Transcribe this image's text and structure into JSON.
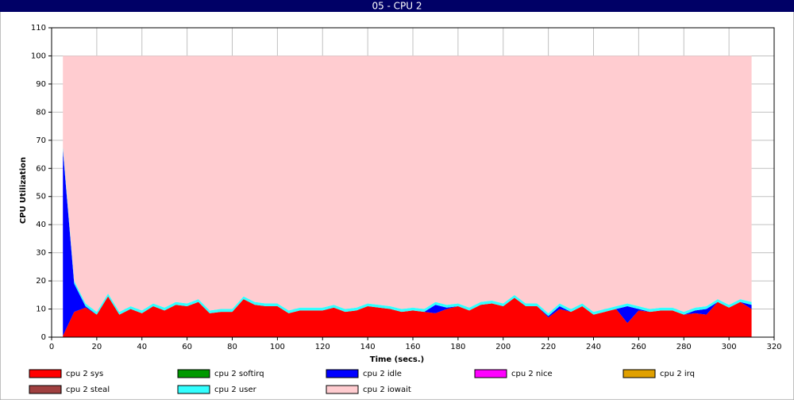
{
  "chart_data": {
    "type": "stacked-area",
    "title": "05 - CPU 2",
    "x_label": "Time (secs.)",
    "y_label": "CPU Utilization",
    "x": [
      5,
      10,
      15,
      20,
      25,
      30,
      35,
      40,
      45,
      50,
      55,
      60,
      65,
      70,
      75,
      80,
      85,
      90,
      95,
      100,
      105,
      110,
      115,
      120,
      125,
      130,
      135,
      140,
      145,
      150,
      155,
      160,
      165,
      170,
      175,
      180,
      185,
      190,
      195,
      200,
      205,
      210,
      215,
      220,
      225,
      230,
      235,
      240,
      245,
      250,
      255,
      260,
      265,
      270,
      275,
      280,
      285,
      290,
      295,
      300,
      305,
      310
    ],
    "xlim": [
      0,
      320
    ],
    "xticks": [
      0,
      20,
      40,
      60,
      80,
      100,
      120,
      140,
      160,
      180,
      200,
      220,
      240,
      260,
      280,
      300,
      320
    ],
    "ylim": [
      0,
      110
    ],
    "yticks": [
      0,
      10,
      20,
      30,
      40,
      50,
      60,
      70,
      80,
      90,
      100,
      110
    ],
    "grid": true,
    "series": [
      {
        "name": "cpu 2 sys",
        "color": "#ff0000",
        "values": [
          0.5,
          9,
          10.5,
          8,
          14.5,
          8,
          10,
          8.5,
          11,
          9.5,
          11.5,
          11,
          12.5,
          8.5,
          9,
          9,
          13.5,
          11.5,
          11,
          11,
          8.5,
          9.5,
          9.5,
          9.5,
          10.5,
          9,
          9.5,
          11,
          10.5,
          10,
          9,
          9.5,
          9,
          8.5,
          10,
          11,
          9.5,
          11.5,
          12,
          11,
          14,
          11,
          11,
          7,
          10,
          9,
          11,
          8,
          9,
          10,
          5,
          9.5,
          9,
          9.5,
          9.5,
          8,
          8.5,
          8,
          12.5,
          10.5,
          12.5,
          10
        ]
      },
      {
        "name": "cpu 2 softirq",
        "color": "#009900",
        "values": [
          0,
          0,
          0,
          0,
          0,
          0,
          0,
          0,
          0,
          0,
          0,
          0,
          0,
          0,
          0,
          0,
          0,
          0,
          0,
          0,
          0,
          0,
          0,
          0,
          0,
          0,
          0,
          0,
          0,
          0,
          0,
          0,
          0,
          0,
          0,
          0,
          0,
          0,
          0,
          0,
          0,
          0,
          0,
          0,
          0,
          0,
          0,
          0,
          0,
          0,
          0,
          0,
          0,
          0,
          0,
          0,
          0,
          0,
          0,
          0,
          0,
          0
        ]
      },
      {
        "name": "cpu 2 idle",
        "color": "#0000ff",
        "values": [
          66,
          10,
          0.5,
          0,
          0,
          0,
          0,
          0,
          0,
          0,
          0,
          0,
          0,
          0,
          0,
          0,
          0,
          0,
          0,
          0,
          0,
          0,
          0,
          0,
          0,
          0,
          0,
          0,
          0,
          0,
          0,
          0,
          0,
          3,
          0.5,
          0,
          0,
          0,
          0,
          0,
          0,
          0,
          0,
          0.5,
          1,
          0,
          0,
          0,
          0,
          0,
          6,
          0.5,
          0,
          0,
          0,
          0,
          1,
          2,
          0,
          0,
          0,
          1.5
        ]
      },
      {
        "name": "cpu 2 nice",
        "color": "#ff00ff",
        "values": [
          0,
          0,
          0,
          0,
          0,
          0,
          0,
          0,
          0,
          0,
          0,
          0,
          0,
          0,
          0,
          0,
          0,
          0,
          0,
          0,
          0,
          0,
          0,
          0,
          0,
          0,
          0,
          0,
          0,
          0,
          0,
          0,
          0,
          0,
          0,
          0,
          0,
          0,
          0,
          0,
          0,
          0,
          0,
          0,
          0,
          0,
          0,
          0,
          0,
          0,
          0,
          0,
          0,
          0,
          0,
          0,
          0,
          0,
          0,
          0,
          0,
          0
        ]
      },
      {
        "name": "cpu 2 irq",
        "color": "#e0a000",
        "values": [
          0,
          0,
          0,
          0,
          0,
          0,
          0,
          0,
          0,
          0,
          0,
          0,
          0,
          0,
          0,
          0,
          0,
          0,
          0,
          0,
          0,
          0,
          0,
          0,
          0,
          0,
          0,
          0,
          0,
          0,
          0,
          0,
          0,
          0,
          0,
          0,
          0,
          0,
          0,
          0,
          0,
          0,
          0,
          0,
          0,
          0,
          0,
          0,
          0,
          0,
          0,
          0,
          0,
          0,
          0,
          0,
          0,
          0,
          0,
          0,
          0,
          0
        ]
      },
      {
        "name": "cpu 2 steal",
        "color": "#a04040",
        "values": [
          0,
          0,
          0,
          0,
          0,
          0,
          0,
          0,
          0,
          0,
          0,
          0,
          0,
          0,
          0,
          0,
          0,
          0,
          0,
          0,
          0,
          0,
          0,
          0,
          0,
          0,
          0,
          0,
          0,
          0,
          0,
          0,
          0,
          0,
          0,
          0,
          0,
          0,
          0,
          0,
          0,
          0,
          0,
          0,
          0,
          0,
          0,
          0,
          0,
          0,
          0,
          0,
          0,
          0,
          0,
          0,
          0,
          0,
          0,
          0,
          0,
          0
        ]
      },
      {
        "name": "cpu 2 user",
        "color": "#33ffff",
        "values": [
          1,
          1,
          1,
          1,
          1,
          1,
          1,
          1,
          1,
          1,
          1,
          1,
          1,
          1,
          1,
          1,
          1,
          1,
          1,
          1,
          1,
          1,
          1,
          1,
          1,
          1,
          1,
          1,
          1,
          1,
          1,
          1,
          1,
          1,
          1,
          1,
          1,
          1,
          1,
          1,
          1,
          1,
          1,
          1,
          1,
          1,
          1,
          1,
          1,
          1,
          1,
          1,
          1,
          1,
          1,
          1,
          1,
          1,
          1,
          1,
          1,
          1
        ]
      },
      {
        "name": "cpu 2 iowait",
        "color": "#ffccd0",
        "values": [
          32.5,
          80,
          88,
          91,
          84.5,
          91,
          89,
          90.5,
          88,
          89.5,
          87.5,
          88,
          86.5,
          90.5,
          90,
          90,
          85.5,
          87.5,
          88,
          88,
          90.5,
          89.5,
          89.5,
          89.5,
          88.5,
          90,
          89.5,
          88,
          88.5,
          89,
          90,
          89.5,
          90,
          87.5,
          88.5,
          88,
          89.5,
          87.5,
          87,
          88,
          85,
          88,
          88,
          91.5,
          88,
          90,
          88,
          91,
          90,
          89,
          88,
          89,
          90,
          89.5,
          89.5,
          91,
          89.5,
          89,
          86.5,
          88.5,
          86.5,
          87.5
        ]
      }
    ]
  }
}
